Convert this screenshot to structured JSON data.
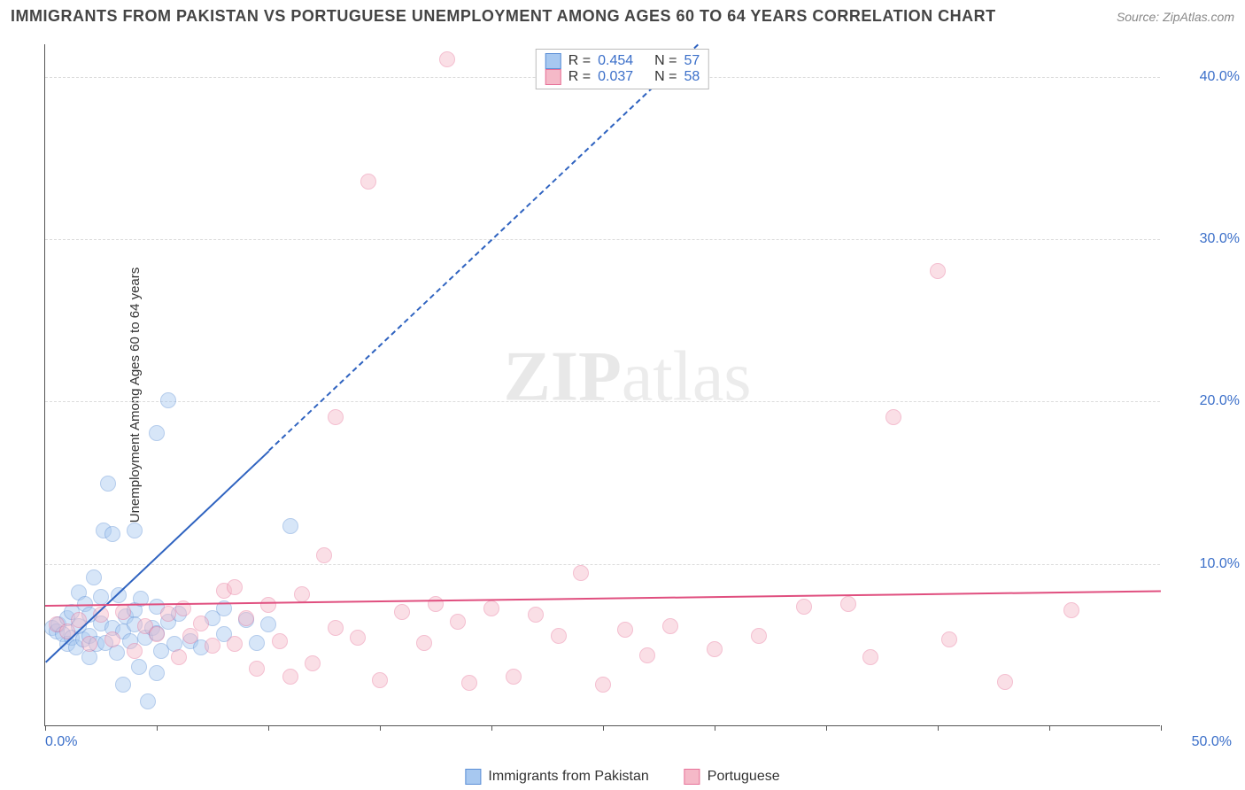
{
  "header": {
    "title": "IMMIGRANTS FROM PAKISTAN VS PORTUGUESE UNEMPLOYMENT AMONG AGES 60 TO 64 YEARS CORRELATION CHART",
    "source": "Source: ZipAtlas.com"
  },
  "ylabel": "Unemployment Among Ages 60 to 64 years",
  "watermark": {
    "part1": "ZIP",
    "part2": "atlas"
  },
  "chart": {
    "type": "scatter",
    "background_color": "#ffffff",
    "grid_color": "#dcdcdc",
    "axis_color": "#555555",
    "xlim": [
      0,
      50
    ],
    "ylim": [
      0,
      42
    ],
    "xticks": [
      0,
      5,
      10,
      15,
      20,
      25,
      30,
      35,
      40,
      45,
      50
    ],
    "xtick_labels": {
      "0": "0.0%",
      "50": "50.0%"
    },
    "xtick_label_color": "#3b6fc9",
    "yticks": [
      10,
      20,
      30,
      40
    ],
    "ytick_labels": [
      "10.0%",
      "20.0%",
      "30.0%",
      "40.0%"
    ],
    "ytick_label_color": "#3b6fc9",
    "marker_radius": 9,
    "marker_opacity": 0.45,
    "series": [
      {
        "name": "Immigrants from Pakistan",
        "color_fill": "#a7c8f0",
        "color_stroke": "#5b8fd6",
        "r_value": "0.454",
        "n_value": "57",
        "trend": {
          "y_at_x0": 4.0,
          "slope": 1.3,
          "solid_until_x": 10,
          "color": "#2f63c0",
          "width": 2,
          "dash": "6,5"
        },
        "points": [
          [
            0.3,
            6.0
          ],
          [
            0.5,
            5.8
          ],
          [
            0.6,
            6.2
          ],
          [
            0.8,
            5.6
          ],
          [
            1.0,
            5.0
          ],
          [
            1.0,
            6.6
          ],
          [
            1.2,
            5.4
          ],
          [
            1.2,
            7.0
          ],
          [
            1.4,
            4.8
          ],
          [
            1.5,
            6.1
          ],
          [
            1.5,
            8.2
          ],
          [
            1.7,
            5.3
          ],
          [
            1.8,
            7.5
          ],
          [
            2.0,
            5.5
          ],
          [
            2.0,
            6.8
          ],
          [
            2.0,
            4.2
          ],
          [
            2.2,
            9.1
          ],
          [
            2.3,
            5.0
          ],
          [
            2.5,
            6.3
          ],
          [
            2.5,
            7.9
          ],
          [
            2.6,
            12.0
          ],
          [
            2.7,
            5.1
          ],
          [
            2.8,
            14.9
          ],
          [
            3.0,
            11.8
          ],
          [
            3.0,
            6.0
          ],
          [
            3.2,
            4.5
          ],
          [
            3.3,
            8.0
          ],
          [
            3.5,
            5.8
          ],
          [
            3.5,
            2.5
          ],
          [
            3.6,
            6.7
          ],
          [
            3.8,
            5.2
          ],
          [
            4.0,
            7.1
          ],
          [
            4.0,
            6.2
          ],
          [
            4.0,
            12.0
          ],
          [
            4.2,
            3.6
          ],
          [
            4.3,
            7.8
          ],
          [
            4.5,
            5.4
          ],
          [
            4.6,
            1.5
          ],
          [
            4.8,
            6.0
          ],
          [
            5.0,
            3.2
          ],
          [
            5.0,
            5.7
          ],
          [
            5.0,
            7.3
          ],
          [
            5.0,
            18.0
          ],
          [
            5.2,
            4.6
          ],
          [
            5.5,
            6.4
          ],
          [
            5.5,
            20.0
          ],
          [
            5.8,
            5.0
          ],
          [
            6.0,
            6.9
          ],
          [
            6.5,
            5.2
          ],
          [
            7.0,
            4.8
          ],
          [
            7.5,
            6.6
          ],
          [
            8.0,
            5.6
          ],
          [
            8.0,
            7.2
          ],
          [
            9.0,
            6.5
          ],
          [
            9.5,
            5.1
          ],
          [
            10.0,
            6.2
          ],
          [
            11.0,
            12.3
          ]
        ]
      },
      {
        "name": "Portuguese",
        "color_fill": "#f5b9c8",
        "color_stroke": "#e77299",
        "r_value": "0.037",
        "n_value": "58",
        "trend": {
          "y_at_x0": 7.5,
          "slope": 0.018,
          "solid_until_x": 50,
          "color": "#e04f7f",
          "width": 2,
          "dash": ""
        },
        "points": [
          [
            0.5,
            6.2
          ],
          [
            1.0,
            5.8
          ],
          [
            1.5,
            6.5
          ],
          [
            2.0,
            5.0
          ],
          [
            2.5,
            6.8
          ],
          [
            3.0,
            5.3
          ],
          [
            3.5,
            7.0
          ],
          [
            4.0,
            4.6
          ],
          [
            4.5,
            6.1
          ],
          [
            5.0,
            5.6
          ],
          [
            5.5,
            6.9
          ],
          [
            6.0,
            4.2
          ],
          [
            6.2,
            7.2
          ],
          [
            6.5,
            5.5
          ],
          [
            7.0,
            6.3
          ],
          [
            7.5,
            4.9
          ],
          [
            8.0,
            8.3
          ],
          [
            8.5,
            8.5
          ],
          [
            8.5,
            5.0
          ],
          [
            9.0,
            6.6
          ],
          [
            9.5,
            3.5
          ],
          [
            10.0,
            7.4
          ],
          [
            10.5,
            5.2
          ],
          [
            11.0,
            3.0
          ],
          [
            11.5,
            8.1
          ],
          [
            12.0,
            3.8
          ],
          [
            12.5,
            10.5
          ],
          [
            13.0,
            19.0
          ],
          [
            13.0,
            6.0
          ],
          [
            14.0,
            5.4
          ],
          [
            14.5,
            33.5
          ],
          [
            15.0,
            2.8
          ],
          [
            16.0,
            7.0
          ],
          [
            17.0,
            5.1
          ],
          [
            17.5,
            7.5
          ],
          [
            18.0,
            41.0
          ],
          [
            18.5,
            6.4
          ],
          [
            19.0,
            2.6
          ],
          [
            20.0,
            7.2
          ],
          [
            21.0,
            3.0
          ],
          [
            22.0,
            6.8
          ],
          [
            23.0,
            5.5
          ],
          [
            24.0,
            9.4
          ],
          [
            25.0,
            2.5
          ],
          [
            26.0,
            5.9
          ],
          [
            27.0,
            4.3
          ],
          [
            28.0,
            6.1
          ],
          [
            29.0,
            41.0
          ],
          [
            30.0,
            4.7
          ],
          [
            32.0,
            5.5
          ],
          [
            34.0,
            7.3
          ],
          [
            36.0,
            7.5
          ],
          [
            37.0,
            4.2
          ],
          [
            38.0,
            19.0
          ],
          [
            40.0,
            28.0
          ],
          [
            40.5,
            5.3
          ],
          [
            43.0,
            2.7
          ],
          [
            46.0,
            7.1
          ]
        ]
      }
    ]
  },
  "legend_top": {
    "rows": [
      {
        "swatch_fill": "#a7c8f0",
        "swatch_stroke": "#5b8fd6",
        "r_label": "R =",
        "r_value": "0.454",
        "n_label": "N =",
        "n_value": "57"
      },
      {
        "swatch_fill": "#f5b9c8",
        "swatch_stroke": "#e77299",
        "r_label": "R =",
        "r_value": "0.037",
        "n_label": "N =",
        "n_value": "58"
      }
    ],
    "value_color": "#3b6fc9",
    "label_color": "#333333"
  },
  "legend_bottom": {
    "items": [
      {
        "swatch_fill": "#a7c8f0",
        "swatch_stroke": "#5b8fd6",
        "label": "Immigrants from Pakistan"
      },
      {
        "swatch_fill": "#f5b9c8",
        "swatch_stroke": "#e77299",
        "label": "Portuguese"
      }
    ]
  }
}
